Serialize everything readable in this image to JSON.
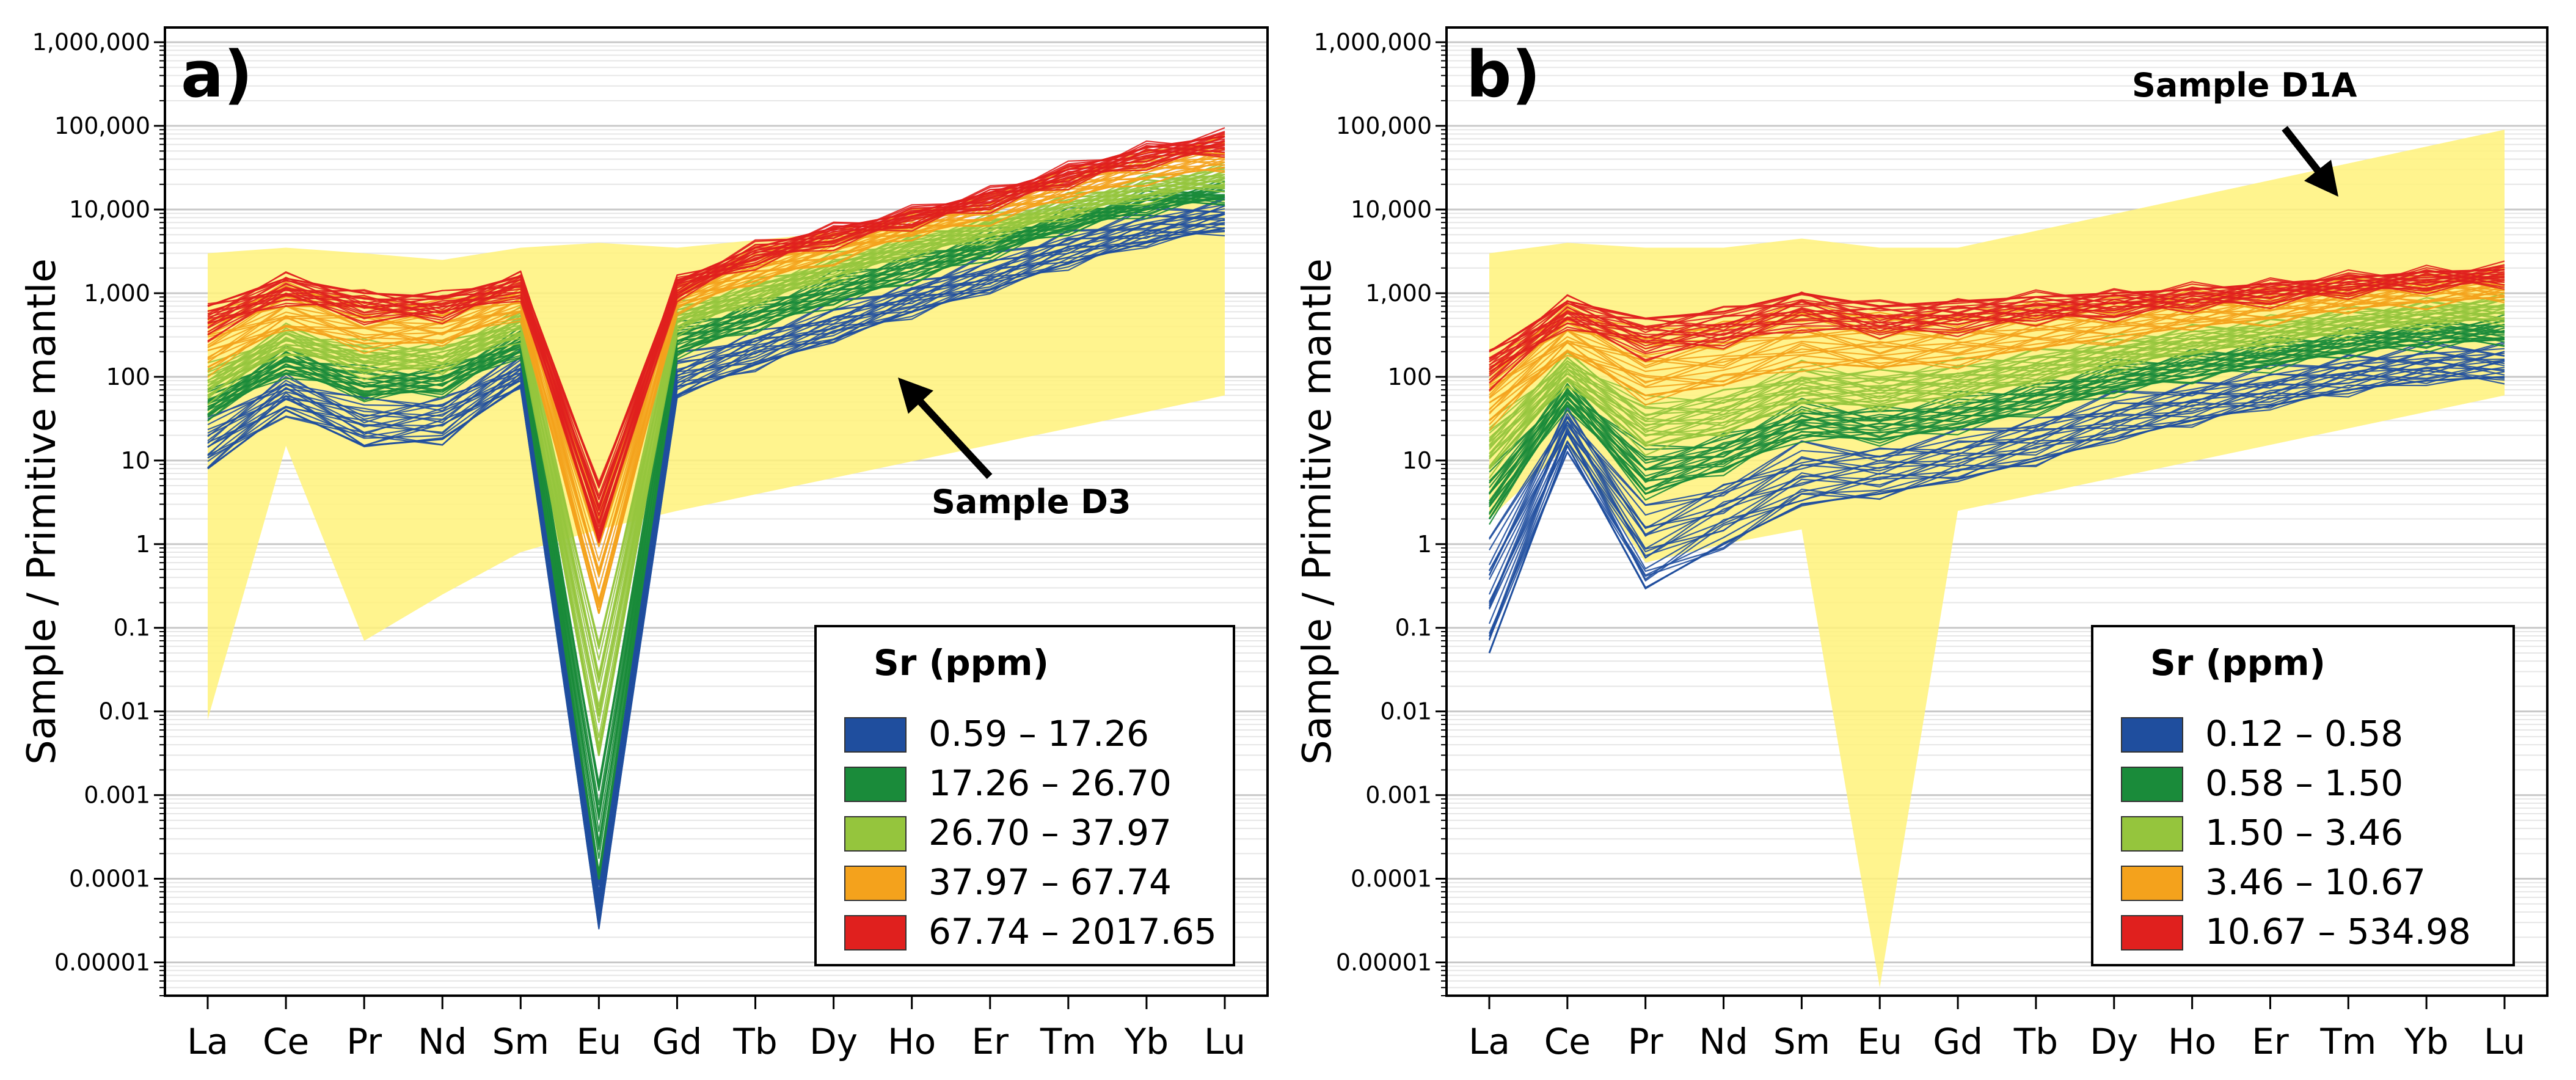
{
  "chart_data": [
    {
      "type": "line",
      "panel_label": "a)",
      "ylabel": "Sample / Primitive mantle",
      "xlabel": "",
      "y_scale": "log",
      "ylim": [
        4e-06,
        1500000
      ],
      "y_ticks": [
        {
          "value": 1000000,
          "label": "1,000,000"
        },
        {
          "value": 100000,
          "label": "100,000"
        },
        {
          "value": 10000,
          "label": "10,000"
        },
        {
          "value": 1000,
          "label": "1,000"
        },
        {
          "value": 100,
          "label": "100"
        },
        {
          "value": 10,
          "label": "10"
        },
        {
          "value": 1,
          "label": "1"
        },
        {
          "value": 0.1,
          "label": "0.1"
        },
        {
          "value": 0.01,
          "label": "0.01"
        },
        {
          "value": 0.001,
          "label": "0.001"
        },
        {
          "value": 0.0001,
          "label": "0.0001"
        },
        {
          "value": 1e-05,
          "label": "0.00001"
        }
      ],
      "categories": [
        "La",
        "Ce",
        "Pr",
        "Nd",
        "Sm",
        "Eu",
        "Gd",
        "Tb",
        "Dy",
        "Ho",
        "Er",
        "Tm",
        "Yb",
        "Lu"
      ],
      "grid": true,
      "reference_band": {
        "label": "Sample D3",
        "color": "#fff27a",
        "upper": [
          3000,
          3500,
          3000,
          2500,
          3500,
          4000,
          3500,
          null,
          null,
          null,
          null,
          null,
          null,
          15000
        ],
        "lower": [
          0.008,
          15,
          0.07,
          0.25,
          0.8,
          1.5,
          2.5,
          null,
          null,
          null,
          null,
          null,
          null,
          60
        ]
      },
      "series": [
        {
          "name": "0.59 – 17.26",
          "color": "#1f4e9e",
          "values": [
            8,
            40,
            15,
            18,
            80,
            3e-05,
            60,
            140,
            280,
            600,
            1100,
            2300,
            4000,
            6000
          ]
        },
        {
          "name": "17.26 – 26.70",
          "color": "#1a8b3a",
          "values": [
            35,
            120,
            60,
            70,
            200,
            0.0001,
            200,
            400,
            800,
            1500,
            3000,
            6000,
            10000,
            14000
          ]
        },
        {
          "name": "26.70 – 37.97",
          "color": "#95c53d",
          "values": [
            60,
            220,
            120,
            130,
            330,
            0.003,
            400,
            800,
            1600,
            3000,
            5000,
            9000,
            15000,
            20000
          ]
        },
        {
          "name": "37.97 – 67.74",
          "color": "#f4a21c",
          "values": [
            130,
            400,
            250,
            260,
            600,
            0.15,
            700,
            1400,
            2700,
            5000,
            8000,
            14000,
            24000,
            32000
          ]
        },
        {
          "name": "67.74 – 2017.65",
          "color": "#e0201e",
          "values": [
            700,
            1500,
            1000,
            900,
            1600,
            5,
            1400,
            3500,
            6000,
            9000,
            16000,
            30000,
            55000,
            75000
          ]
        }
      ],
      "legend": {
        "title": "Sr (ppm)",
        "position": "bottom-right",
        "entries": [
          {
            "label": "0.59 – 17.26",
            "color": "#1f4e9e"
          },
          {
            "label": "17.26 – 26.70",
            "color": "#1a8b3a"
          },
          {
            "label": "26.70 – 37.97",
            "color": "#95c53d"
          },
          {
            "label": "37.97 – 67.74",
            "color": "#f4a21c"
          },
          {
            "label": "67.74 – 2017.65",
            "color": "#e0201e"
          }
        ]
      },
      "annotations": [
        {
          "text": "Sample D3"
        }
      ]
    },
    {
      "type": "line",
      "panel_label": "b)",
      "ylabel": "Sample / Primitive mantle",
      "xlabel": "",
      "y_scale": "log",
      "ylim": [
        4e-06,
        1500000
      ],
      "y_ticks": [
        {
          "value": 1000000,
          "label": "1,000,000"
        },
        {
          "value": 100000,
          "label": "100,000"
        },
        {
          "value": 10000,
          "label": "10,000"
        },
        {
          "value": 1000,
          "label": "1,000"
        },
        {
          "value": 100,
          "label": "100"
        },
        {
          "value": 10,
          "label": "10"
        },
        {
          "value": 1,
          "label": "1"
        },
        {
          "value": 0.1,
          "label": "0.1"
        },
        {
          "value": 0.01,
          "label": "0.01"
        },
        {
          "value": 0.001,
          "label": "0.001"
        },
        {
          "value": 0.0001,
          "label": "0.0001"
        },
        {
          "value": 1e-05,
          "label": "0.00001"
        }
      ],
      "categories": [
        "La",
        "Ce",
        "Pr",
        "Nd",
        "Sm",
        "Eu",
        "Gd",
        "Tb",
        "Dy",
        "Ho",
        "Er",
        "Tm",
        "Yb",
        "Lu"
      ],
      "grid": true,
      "reference_band": {
        "label": "Sample D1A",
        "color": "#fff27a",
        "upper": [
          3000,
          4000,
          3500,
          3500,
          4500,
          3500,
          3500,
          null,
          null,
          null,
          null,
          null,
          null,
          90000
        ],
        "lower": [
          2,
          15,
          0.6,
          1.0,
          1.5,
          5e-06,
          2.5,
          null,
          null,
          null,
          null,
          null,
          null,
          60
        ]
      },
      "series": [
        {
          "name": "0.12 – 0.58",
          "color": "#1f4e9e",
          "values": [
            0.05,
            15,
            0.3,
            1.0,
            3,
            4,
            6,
            10,
            18,
            30,
            45,
            70,
            90,
            100
          ]
        },
        {
          "name": "0.58 – 1.50",
          "color": "#1a8b3a",
          "values": [
            2,
            50,
            4,
            8,
            20,
            18,
            25,
            40,
            70,
            100,
            140,
            200,
            250,
            280
          ]
        },
        {
          "name": "1.50 – 3.46",
          "color": "#95c53d",
          "values": [
            8,
            90,
            15,
            22,
            50,
            45,
            60,
            90,
            140,
            200,
            260,
            350,
            450,
            500
          ]
        },
        {
          "name": "3.46 – 10.67",
          "color": "#f4a21c",
          "values": [
            30,
            200,
            60,
            80,
            150,
            130,
            160,
            220,
            300,
            400,
            500,
            650,
            800,
            900
          ]
        },
        {
          "name": "10.67 – 534.98",
          "color": "#e0201e",
          "values": [
            200,
            800,
            500,
            600,
            1000,
            700,
            800,
            900,
            1000,
            1100,
            1300,
            1500,
            1800,
            1900
          ]
        }
      ],
      "legend": {
        "title": "Sr (ppm)",
        "position": "bottom-right",
        "entries": [
          {
            "label": "0.12 – 0.58",
            "color": "#1f4e9e"
          },
          {
            "label": "0.58 – 1.50",
            "color": "#1a8b3a"
          },
          {
            "label": "1.50 – 3.46",
            "color": "#95c53d"
          },
          {
            "label": "3.46 – 10.67",
            "color": "#f4a21c"
          },
          {
            "label": "10.67 – 534.98",
            "color": "#e0201e"
          }
        ]
      },
      "annotations": [
        {
          "text": "Sample D1A"
        }
      ]
    }
  ]
}
